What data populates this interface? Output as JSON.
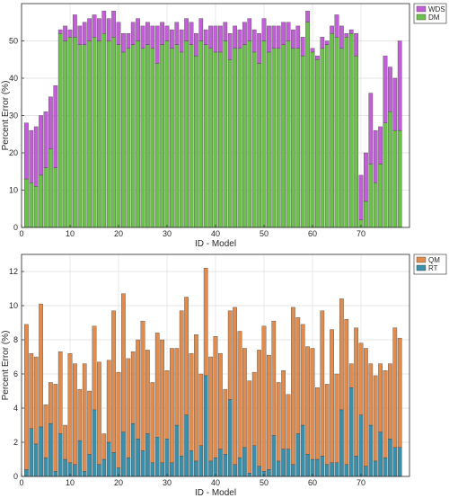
{
  "colors": {
    "wds": "#c15fd6",
    "dm": "#6cc14d",
    "qm": "#e08c4f",
    "rt": "#3b8fa8",
    "grid": "#dedede",
    "axis": "#262626",
    "background": "#ffffff"
  },
  "chart_data": [
    {
      "type": "bar",
      "stacked": true,
      "xlabel": "ID - Model",
      "ylabel": "Percent Error (%)",
      "xlim": [
        0,
        80
      ],
      "ylim": [
        0,
        60
      ],
      "xticks": [
        0,
        10,
        20,
        30,
        40,
        50,
        60,
        70
      ],
      "yticks": [
        0,
        10,
        20,
        30,
        40,
        50
      ],
      "grid": true,
      "legend_position": "top-right",
      "x": [
        1,
        2,
        3,
        4,
        5,
        6,
        7,
        8,
        9,
        10,
        11,
        12,
        13,
        14,
        15,
        16,
        17,
        18,
        19,
        20,
        21,
        22,
        23,
        24,
        25,
        26,
        27,
        28,
        29,
        30,
        31,
        32,
        33,
        34,
        35,
        36,
        37,
        38,
        39,
        40,
        41,
        42,
        43,
        44,
        45,
        46,
        47,
        48,
        49,
        50,
        51,
        52,
        53,
        54,
        55,
        56,
        57,
        58,
        59,
        60,
        61,
        62,
        63,
        64,
        65,
        66,
        67,
        68,
        69,
        70,
        71,
        72,
        73,
        74,
        75,
        76,
        77,
        78
      ],
      "series": [
        {
          "name": "DM",
          "values": [
            13,
            12,
            11,
            14,
            16,
            21,
            16,
            52,
            50,
            51,
            51,
            49,
            49,
            50,
            51,
            50,
            52,
            50,
            51,
            49,
            47,
            48,
            49,
            50,
            48,
            49,
            48,
            44,
            49,
            50,
            48,
            49,
            47,
            50,
            49,
            46,
            50,
            49,
            48,
            47,
            47,
            50,
            45,
            48,
            48,
            49,
            50,
            47,
            44,
            50,
            47,
            48,
            48,
            49,
            50,
            48,
            48,
            46,
            55,
            47,
            45,
            48,
            49,
            52,
            51,
            48,
            51,
            52,
            46,
            2,
            7,
            17,
            12,
            17,
            28,
            31,
            26,
            26
          ]
        },
        {
          "name": "WDS",
          "values": [
            15,
            14,
            16,
            16,
            15,
            14,
            22,
            1,
            4,
            2,
            6,
            5,
            6,
            6,
            6,
            6,
            6,
            6,
            7,
            6,
            5,
            4,
            6,
            6,
            6,
            6,
            6,
            10,
            6,
            4,
            5,
            6,
            6,
            6,
            6,
            6,
            6,
            4,
            6,
            7,
            7,
            5,
            7,
            6,
            5,
            6,
            6,
            6,
            8,
            6,
            7,
            6,
            6,
            6,
            5,
            5,
            6,
            5,
            3,
            1,
            1,
            3,
            1,
            2,
            6,
            6,
            1,
            1,
            6,
            12,
            13,
            19,
            14,
            10,
            18,
            12,
            14,
            24
          ]
        }
      ]
    },
    {
      "type": "bar",
      "stacked": true,
      "xlabel": "ID - Model",
      "ylabel": "Percent Error (%)",
      "xlim": [
        0,
        80
      ],
      "ylim": [
        0,
        13
      ],
      "xticks": [
        0,
        10,
        20,
        30,
        40,
        50,
        60,
        70
      ],
      "yticks": [
        0,
        2,
        4,
        6,
        8,
        10,
        12
      ],
      "grid": true,
      "legend_position": "top-right",
      "x": [
        1,
        2,
        3,
        4,
        5,
        6,
        7,
        8,
        9,
        10,
        11,
        12,
        13,
        14,
        15,
        16,
        17,
        18,
        19,
        20,
        21,
        22,
        23,
        24,
        25,
        26,
        27,
        28,
        29,
        30,
        31,
        32,
        33,
        34,
        35,
        36,
        37,
        38,
        39,
        40,
        41,
        42,
        43,
        44,
        45,
        46,
        47,
        48,
        49,
        50,
        51,
        52,
        53,
        54,
        55,
        56,
        57,
        58,
        59,
        60,
        61,
        62,
        63,
        64,
        65,
        66,
        67,
        68,
        69,
        70,
        71,
        72,
        73,
        74,
        75,
        76,
        77,
        78
      ],
      "series": [
        {
          "name": "RT",
          "values": [
            0.4,
            2.8,
            1.9,
            2.9,
            1.1,
            3.1,
            0.3,
            2.5,
            1.0,
            0.8,
            0.7,
            2.1,
            0.3,
            1.3,
            3.9,
            0.7,
            1.0,
            2.0,
            1.4,
            0.5,
            2.6,
            1.1,
            3.1,
            2.2,
            1.5,
            2.5,
            0.8,
            2.3,
            0.8,
            2.2,
            0.8,
            3.0,
            1.2,
            3.6,
            1.5,
            0.9,
            1.8,
            5.9,
            0.9,
            1.1,
            1.6,
            1.3,
            4.5,
            0.7,
            1.1,
            1.7,
            0.2,
            1.8,
            0.6,
            0.3,
            0.4,
            2.4,
            0.9,
            1.6,
            1.6,
            0.7,
            2.5,
            3.0,
            1.3,
            1.0,
            1.0,
            1.2,
            0.7,
            0.8,
            0.8,
            3.9,
            0.7,
            5.2,
            1.2,
            3.6,
            0.6,
            3.0,
            0.9,
            2.6,
            1.1,
            2.2,
            1.7,
            1.7
          ]
        },
        {
          "name": "QM",
          "values": [
            8.5,
            4.4,
            5.1,
            7.2,
            3.1,
            2.4,
            5.1,
            4.8,
            2.0,
            6.4,
            5.9,
            3.0,
            6.3,
            3.7,
            4.9,
            6.0,
            1.5,
            4.8,
            8.3,
            5.6,
            8.1,
            5.8,
            4.2,
            5.8,
            7.6,
            4.9,
            4.7,
            6.1,
            7.2,
            4.0,
            6.7,
            4.5,
            8.5,
            6.9,
            5.7,
            7.4,
            4.2,
            6.3,
            6.1,
            7.1,
            5.6,
            3.8,
            5.2,
            9.2,
            7.4,
            5.8,
            5.4,
            4.3,
            6.8,
            8.5,
            6.7,
            6.7,
            4.6,
            4.6,
            3.2,
            9.2,
            6.8,
            5.9,
            6.3,
            6.5,
            4.2,
            8.5,
            4.7,
            7.8,
            5.2,
            6.5,
            8.5,
            1.4,
            7.5,
            4.2,
            6.9,
            3.6,
            5.0,
            4.0,
            5.1,
            4.4,
            7.0,
            6.4
          ]
        }
      ]
    }
  ]
}
